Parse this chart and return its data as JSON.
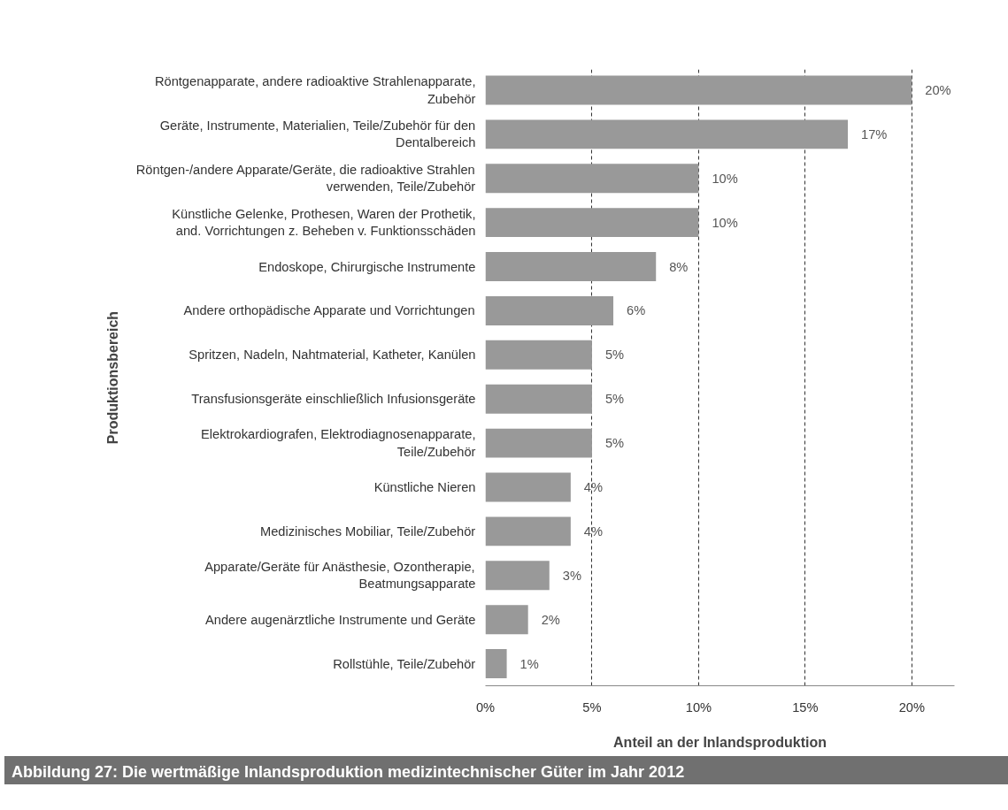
{
  "chart_data": {
    "type": "bar",
    "orientation": "horizontal",
    "title": "Abbildung 27: Die wertmäßige Inlandsproduktion medizintechnischer Güter im Jahr 2012",
    "xlabel": "Anteil an der Inlandsproduktion",
    "ylabel": "Produktionsbereich",
    "categories": [
      "Röntgenapparate, andere radioaktive Strahlenapparate,\nZubehör",
      "Geräte, Instrumente, Materialien, Teile/Zubehör für den\nDentalbereich",
      "Röntgen-/andere Apparate/Geräte, die radioaktive Strahlen\nverwenden, Teile/Zubehör",
      "Künstliche Gelenke, Prothesen, Waren der Prothetik,\nand. Vorrichtungen z. Beheben v. Funktionsschäden",
      "Endoskope, Chirurgische Instrumente",
      "Andere orthopädische Apparate und Vorrichtungen",
      "Spritzen, Nadeln, Nahtmaterial, Katheter, Kanülen",
      "Transfusionsgeräte einschließlich Infusionsgeräte",
      "Elektrokardiografen, Elektrodiagnosenapparate,\nTeile/Zubehör",
      "Künstliche Nieren",
      "Medizinisches Mobiliar, Teile/Zubehör",
      "Apparate/Geräte für Anästhesie, Ozontherapie,\nBeatmungsapparate",
      "Andere augenärztliche Instrumente und Geräte",
      "Rollstühle, Teile/Zubehör"
    ],
    "values": [
      20,
      17,
      10,
      10,
      8,
      6,
      5,
      5,
      5,
      4,
      4,
      3,
      2,
      1
    ],
    "value_labels": [
      "20%",
      "17%",
      "10%",
      "10%",
      "8%",
      "6%",
      "5%",
      "5%",
      "5%",
      "4%",
      "4%",
      "3%",
      "2%",
      "1%"
    ],
    "color": "#999999",
    "xlim": [
      0,
      22
    ],
    "xticks": [
      {
        "value": 0,
        "label": "0%"
      },
      {
        "value": 5,
        "label": "5%"
      },
      {
        "value": 10,
        "label": "10%"
      },
      {
        "value": 15,
        "label": "15%"
      },
      {
        "value": 20,
        "label": "20%"
      }
    ],
    "grid": "x"
  }
}
